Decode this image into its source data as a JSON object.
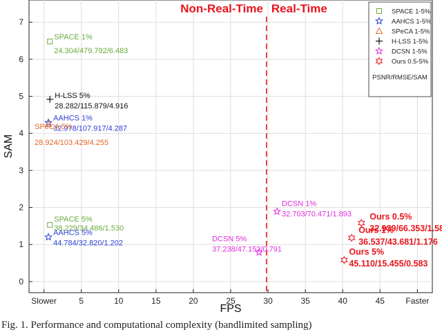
{
  "chart_data": {
    "type": "scatter",
    "xlabel": "FPS",
    "ylabel": "SAM",
    "xlim": [
      -2,
      52
    ],
    "ylim": [
      -0.3,
      7.6
    ],
    "x_ticks": [
      {
        "value": 0,
        "label": "Slower"
      },
      {
        "value": 5,
        "label": "5"
      },
      {
        "value": 10,
        "label": "10"
      },
      {
        "value": 15,
        "label": "15"
      },
      {
        "value": 20,
        "label": "20"
      },
      {
        "value": 25,
        "label": "25"
      },
      {
        "value": 30,
        "label": "30"
      },
      {
        "value": 35,
        "label": "35"
      },
      {
        "value": 40,
        "label": "40"
      },
      {
        "value": 45,
        "label": "45"
      },
      {
        "value": 50,
        "label": "Faster"
      }
    ],
    "y_ticks": [
      0,
      1,
      2,
      3,
      4,
      5,
      6,
      7
    ],
    "grid": true,
    "divider": {
      "x": 29.8,
      "left_label": "Non-Real-Time",
      "right_label": "Real-Time",
      "color": "#e8151b"
    },
    "legend": {
      "placement": "top-right",
      "note": "PSNR/RMSE/SAM",
      "entries": [
        {
          "name": "SPACE 1-5%",
          "marker": "square",
          "color": "#6aaa3a"
        },
        {
          "name": "AAHCS 1-5%",
          "marker": "star",
          "color": "#2a3fd6"
        },
        {
          "name": "SPeCA 1-5%",
          "marker": "triangle",
          "color": "#e0662a"
        },
        {
          "name": "H-LSS 1-5%",
          "marker": "plus",
          "color": "#111111"
        },
        {
          "name": "DCSN 1-5%",
          "marker": "star",
          "color": "#e22ce0"
        },
        {
          "name": "Ours 0.5-5%",
          "marker": "hexstar",
          "color": "#e8151b"
        }
      ]
    },
    "points": [
      {
        "method": "SPACE",
        "x": 0.8,
        "y": 6.48,
        "marker": "square",
        "color": "#6aaa3a",
        "label": "SPACE  1%",
        "values": "24.304/479.792/6.483",
        "bold": false
      },
      {
        "method": "H-LSS",
        "x": 0.8,
        "y": 4.92,
        "marker": "plus",
        "color": "#111111",
        "label": "H-LSS  5%",
        "values": "28.282/115.879/4.916",
        "bold": false
      },
      {
        "method": "AAHCS",
        "x": 0.6,
        "y": 4.29,
        "marker": "star",
        "color": "#2a3fd6",
        "label": "AAHCS  1%",
        "values": "32.978/107.917/4.287",
        "bold": false
      },
      {
        "method": "SPeCA",
        "x": 0.6,
        "y": 4.25,
        "marker": "triangle",
        "color": "#e0662a",
        "label": "SPeCA  5%",
        "values": "28.924/103.429/4.255",
        "bold": false
      },
      {
        "method": "SPACE",
        "x": 0.8,
        "y": 1.53,
        "marker": "square",
        "color": "#6aaa3a",
        "label": "SPACE  5%",
        "values": "38.229/34.486/1.530",
        "bold": false
      },
      {
        "method": "AAHCS",
        "x": 0.6,
        "y": 1.2,
        "marker": "star",
        "color": "#2a3fd6",
        "label": "AAHCS  5%",
        "values": "44.784/32.820/1.202",
        "bold": false
      },
      {
        "method": "DCSN",
        "x": 28.8,
        "y": 0.79,
        "marker": "star",
        "color": "#e22ce0",
        "label": "DCSN  5%",
        "values": "37.238/47.152/0.791",
        "bold": false
      },
      {
        "method": "DCSN",
        "x": 31.2,
        "y": 1.89,
        "marker": "star",
        "color": "#e22ce0",
        "label": "DCSN  1%",
        "values": "32.703/70.471/1.893",
        "bold": false
      },
      {
        "method": "Ours",
        "x": 42.5,
        "y": 1.58,
        "marker": "hexstar",
        "color": "#e8151b",
        "label": "Ours  0.5%",
        "values": "32.939/66.353/1.58",
        "bold": true
      },
      {
        "method": "Ours",
        "x": 41.2,
        "y": 1.18,
        "marker": "hexstar",
        "color": "#e8151b",
        "label": "Ours  1%",
        "values": "36.537/43.681/1.176",
        "bold": true
      },
      {
        "method": "Ours",
        "x": 40.2,
        "y": 0.58,
        "marker": "hexstar",
        "color": "#e8151b",
        "label": "Ours  5%",
        "values": "45.110/15.455/0.583",
        "bold": true
      }
    ]
  },
  "caption": "Fig. 1.   Performance and computational complexity (bandlimited sampling)"
}
